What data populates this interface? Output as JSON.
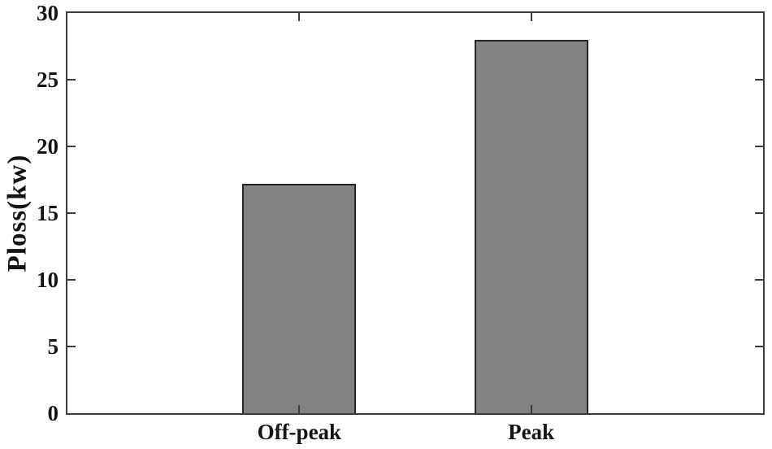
{
  "chart_data": {
    "type": "bar",
    "categories": [
      "Off-peak",
      "Peak"
    ],
    "values": [
      17.2,
      28
    ],
    "title": "",
    "xlabel": "",
    "ylabel": "Ploss(kw)",
    "ylim": [
      0,
      30
    ],
    "yticks": [
      0,
      5,
      10,
      15,
      20,
      25,
      30
    ],
    "xlim": [
      0,
      3
    ],
    "bar_centers": [
      1,
      2
    ],
    "bar_width": 0.49,
    "grid": false,
    "legend": false,
    "box": true,
    "colors": {
      "bar_fill": "#828282",
      "bar_border": "#262626",
      "axis": "#3c3c3c",
      "text": "#141414",
      "background": "#ffffff"
    }
  }
}
